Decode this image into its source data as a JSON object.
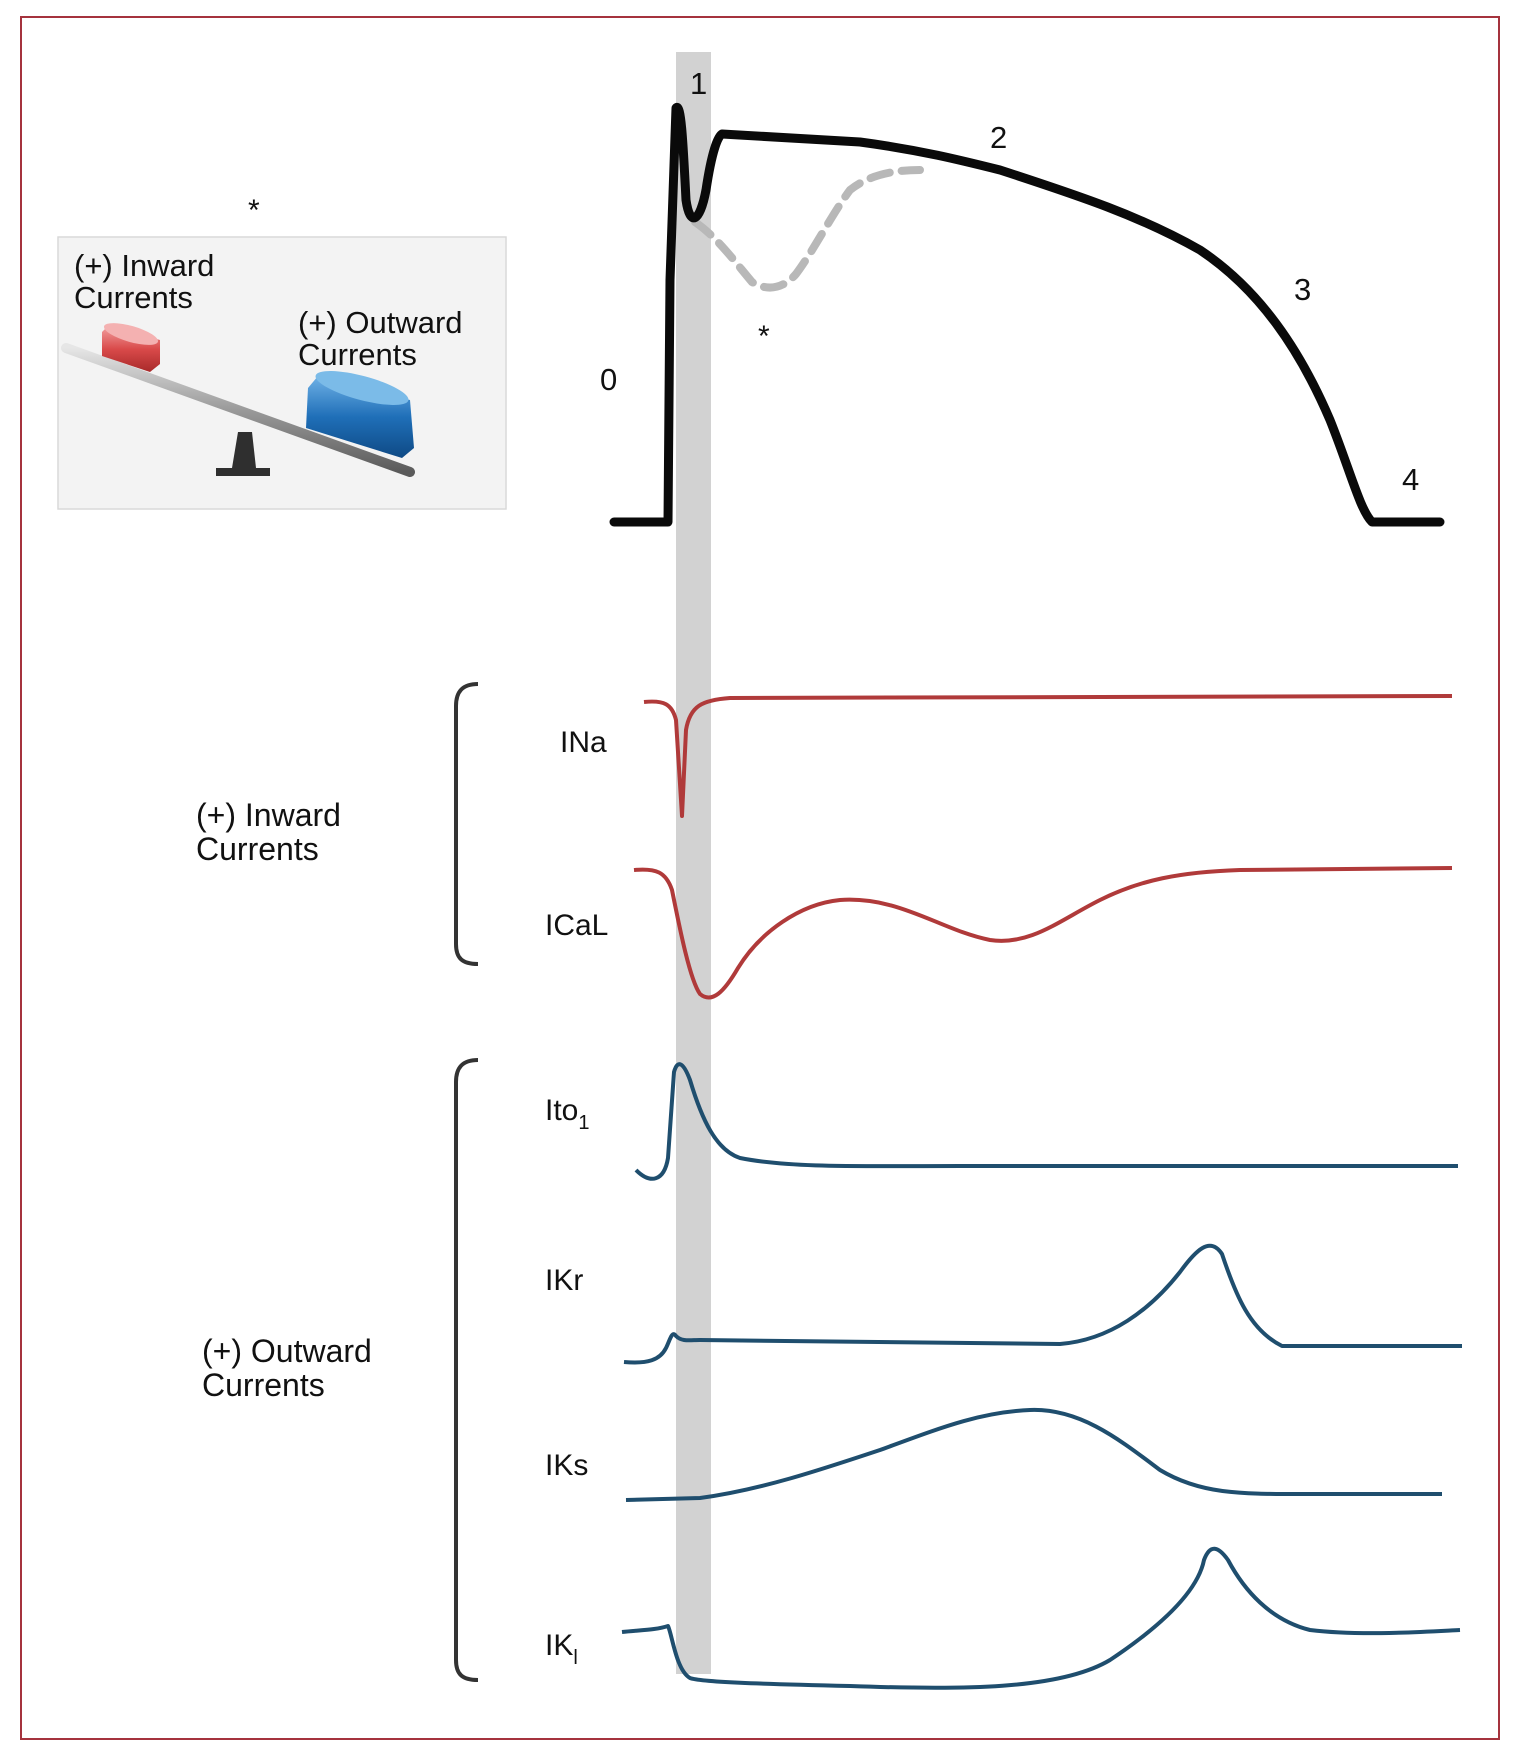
{
  "colors": {
    "border": "#a5333d",
    "action_potential": "#0a0a0a",
    "inward": "#b03a3a",
    "outward": "#1f4e6e",
    "highlight_band": "#cfcfcf",
    "dashed": "#b8b8b8"
  },
  "phases": [
    "0",
    "1",
    "2",
    "3",
    "4"
  ],
  "asterisk": "*",
  "seesaw": {
    "inward_line1": "(+) Inward",
    "inward_line2": "Currents",
    "outward_line1": "(+) Outward",
    "outward_line2": "Currents"
  },
  "groups": {
    "inward_line1": "(+) Inward",
    "inward_line2": "Currents",
    "outward_line1": "(+) Outward",
    "outward_line2": "Currents"
  },
  "currents": {
    "ina": "INa",
    "ical": "ICaL",
    "ito_main": "Ito",
    "ito_sub": "1",
    "ikr": "IKr",
    "iks": "IKs",
    "ik1_main": "IK",
    "ik1_sub": "l"
  }
}
